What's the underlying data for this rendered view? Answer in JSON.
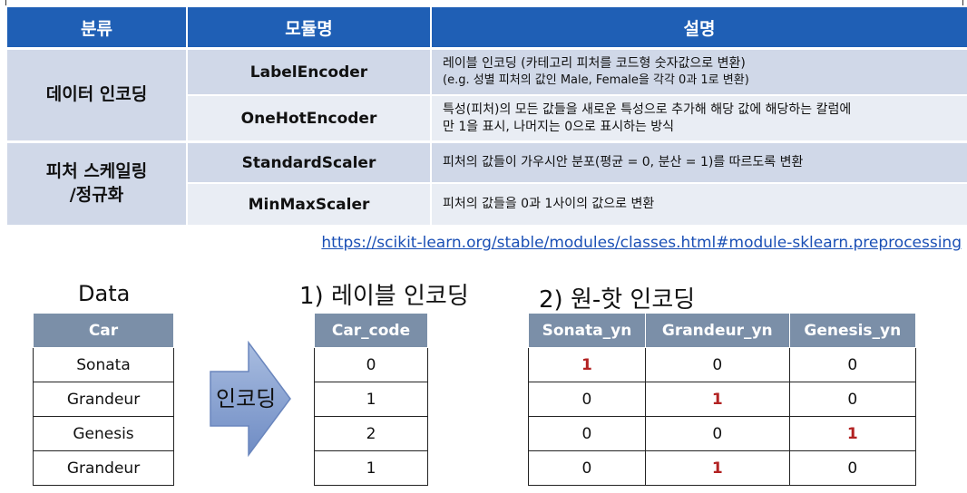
{
  "ref_table": {
    "headers": [
      "분류",
      "모듈명",
      "설명"
    ],
    "groups": [
      {
        "category": "데이터 인코딩",
        "rows": [
          {
            "module": "LabelEncoder",
            "desc_lines": [
              "레이블 인코딩 (카테고리 피처를 코드형 숫자값으로 변환)",
              "(e.g. 성별 피처의 값인 Male, Female을 각각 0과 1로 변환)"
            ]
          },
          {
            "module": "OneHotEncoder",
            "desc_lines": [
              "특성(피처)의 모든 값들을 새로운 특성으로 추가해 해당 값에 해당하는 칼럼에",
              "만 1을 표시, 나머지는 0으로 표시하는 방식"
            ]
          }
        ]
      },
      {
        "category_lines": [
          "피처 스케일링",
          "/정규화"
        ],
        "rows": [
          {
            "module": "StandardScaler",
            "desc_lines": [
              "피처의 값들이 가우시안 분포(평균 = 0, 분산 = 1)를 따르도록 변환"
            ]
          },
          {
            "module": "MinMaxScaler",
            "desc_lines": [
              "피처의 값들을 0과 1사이의 값으로 변환"
            ]
          }
        ]
      }
    ],
    "link": "https://scikit-learn.org/stable/modules/classes.html#module-sklearn.preprocessing"
  },
  "data_table": {
    "title": "Data",
    "header": "Car",
    "rows": [
      "Sonata",
      "Grandeur",
      "Genesis",
      "Grandeur"
    ]
  },
  "arrow": {
    "label": "인코딩",
    "icon": "right-arrow-icon",
    "color": "#8ea6d0"
  },
  "label_table": {
    "title": "1) 레이블 인코딩",
    "header": "Car_code",
    "rows": [
      "0",
      "1",
      "2",
      "1"
    ]
  },
  "onehot_table": {
    "title": "2) 원-핫 인코딩",
    "headers": [
      "Sonata_yn",
      "Grandeur_yn",
      "Genesis_yn"
    ],
    "rows": [
      [
        "1",
        "0",
        "0"
      ],
      [
        "0",
        "1",
        "0"
      ],
      [
        "0",
        "0",
        "1"
      ],
      [
        "0",
        "1",
        "0"
      ]
    ],
    "highlight_color": "#b22222"
  },
  "colors": {
    "header_blue": "#1f5fb5",
    "row_shade": "#d0d8e8",
    "row_shade_light": "#e9edf4",
    "table_header_gray": "#7b8fa8"
  }
}
